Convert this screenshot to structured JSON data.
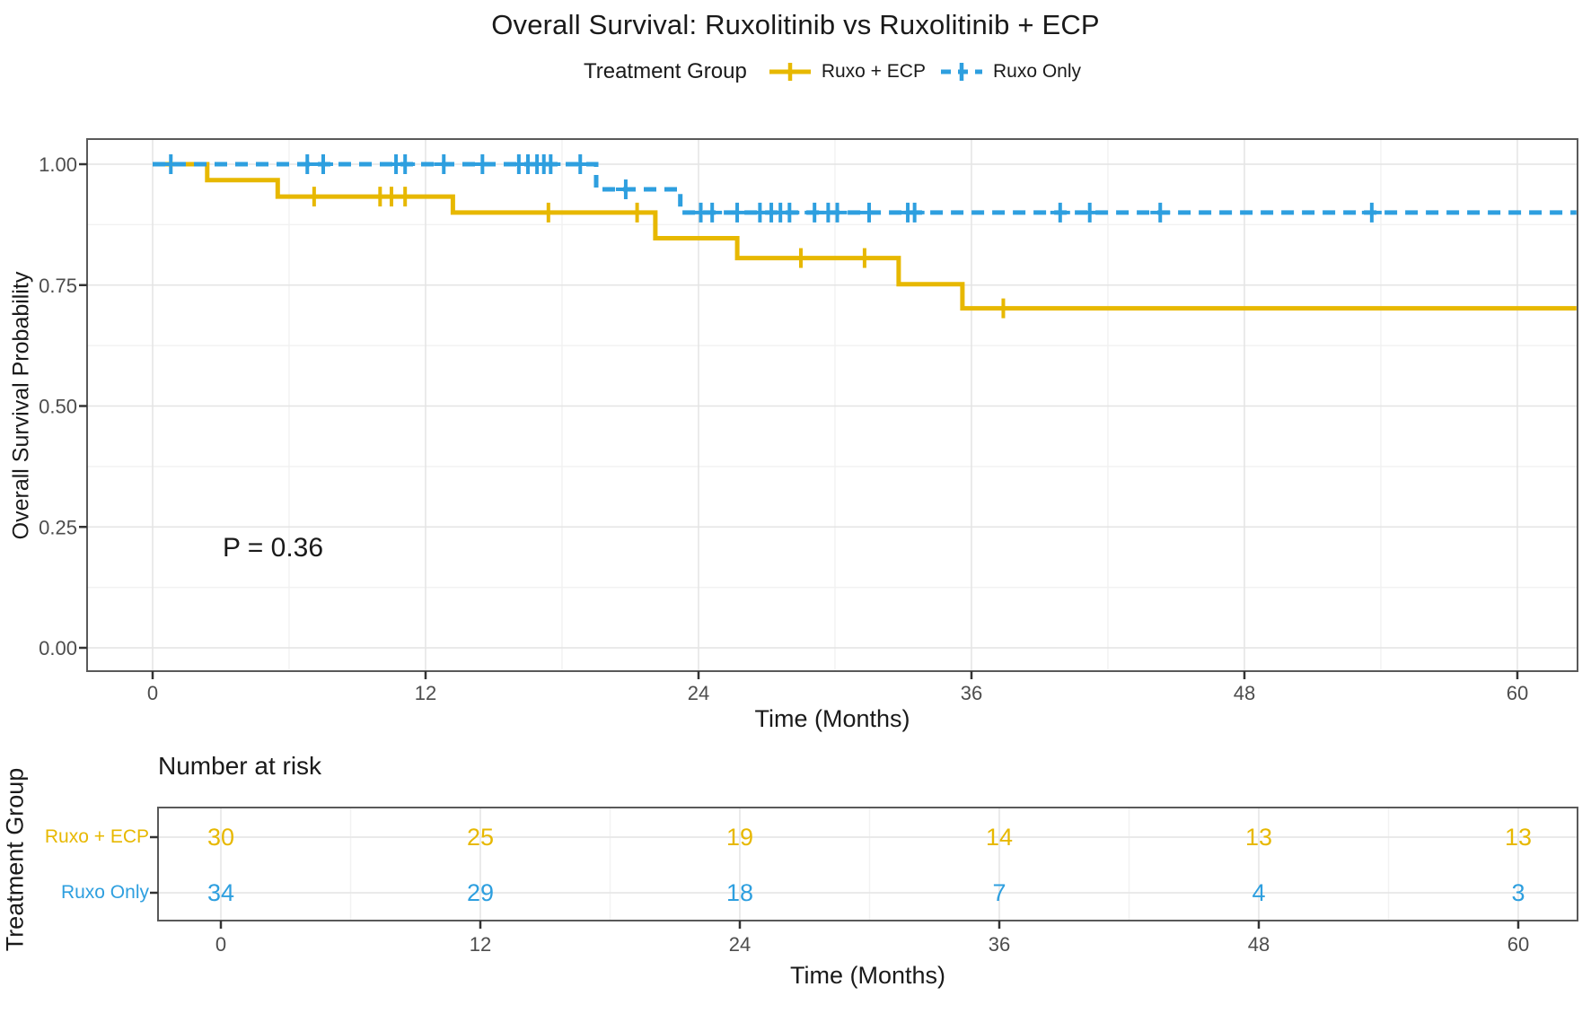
{
  "title": "Overall Survival: Ruxolitinib vs Ruxolitinib + ECP",
  "legend": {
    "title": "Treatment Group",
    "items": [
      {
        "label": "Ruxo + ECP",
        "color": "#E7B800",
        "line_style": "solid"
      },
      {
        "label": "Ruxo Only",
        "color": "#2E9FDF",
        "line_style": "dashed"
      }
    ]
  },
  "annotation": {
    "pvalue": "P = 0.36"
  },
  "colors": {
    "ruxo_ecp": "#E7B800",
    "ruxo_only": "#2E9FDF",
    "tick_label": "#4d4d4d",
    "panel_border": "#595959",
    "grid_major": "#e4e4e4",
    "grid_minor": "#f2f2f2",
    "tick_mark": "#333333"
  },
  "chart_data": {
    "type": "line",
    "subtype": "kaplan-meier-step",
    "title": "Overall Survival: Ruxolitinib vs Ruxolitinib + ECP",
    "xlabel": "Time (Months)",
    "ylabel": "Overall Survival Probability",
    "xlim": [
      -2.9,
      62.7
    ],
    "ylim": [
      -0.05,
      1.05
    ],
    "xticks": [
      0,
      12,
      24,
      36,
      48,
      60
    ],
    "yticks": [
      0.0,
      0.25,
      0.5,
      0.75,
      1.0
    ],
    "minor_xticks": [
      6,
      18,
      30,
      42,
      54
    ],
    "minor_yticks": [
      0.125,
      0.375,
      0.625,
      0.875
    ],
    "grid": true,
    "legend_position": "top",
    "pvalue_label": "P = 0.36",
    "series": [
      {
        "name": "Ruxo + ECP",
        "color": "#E7B800",
        "line_style": "solid",
        "steps": [
          [
            0,
            1.0
          ],
          [
            2.4,
            1.0
          ],
          [
            2.4,
            0.967
          ],
          [
            5.5,
            0.967
          ],
          [
            5.5,
            0.933
          ],
          [
            13.2,
            0.933
          ],
          [
            13.2,
            0.9
          ],
          [
            22.1,
            0.9
          ],
          [
            22.1,
            0.847
          ],
          [
            25.7,
            0.847
          ],
          [
            25.7,
            0.806
          ],
          [
            32.8,
            0.806
          ],
          [
            32.8,
            0.752
          ],
          [
            35.6,
            0.752
          ],
          [
            35.6,
            0.702
          ],
          [
            62.6,
            0.702
          ]
        ],
        "censor_marks": [
          [
            7.1,
            0.933
          ],
          [
            10.0,
            0.933
          ],
          [
            10.5,
            0.933
          ],
          [
            11.1,
            0.933
          ],
          [
            17.4,
            0.9
          ],
          [
            21.3,
            0.9
          ],
          [
            28.5,
            0.806
          ],
          [
            31.3,
            0.806
          ],
          [
            37.4,
            0.702
          ]
        ]
      },
      {
        "name": "Ruxo Only",
        "color": "#2E9FDF",
        "line_style": "dashed",
        "steps": [
          [
            0,
            1.0
          ],
          [
            19.5,
            1.0
          ],
          [
            19.5,
            0.948
          ],
          [
            23.2,
            0.948
          ],
          [
            23.2,
            0.9
          ],
          [
            62.6,
            0.9
          ]
        ],
        "censor_marks": [
          [
            0.8,
            1.0
          ],
          [
            6.8,
            1.0
          ],
          [
            7.5,
            1.0
          ],
          [
            10.7,
            1.0
          ],
          [
            11.1,
            1.0
          ],
          [
            12.8,
            1.0
          ],
          [
            14.5,
            1.0
          ],
          [
            16.1,
            1.0
          ],
          [
            16.5,
            1.0
          ],
          [
            16.9,
            1.0
          ],
          [
            17.2,
            1.0
          ],
          [
            17.5,
            1.0
          ],
          [
            18.8,
            1.0
          ],
          [
            20.8,
            0.948
          ],
          [
            24.1,
            0.9
          ],
          [
            24.6,
            0.9
          ],
          [
            25.7,
            0.9
          ],
          [
            26.7,
            0.9
          ],
          [
            27.2,
            0.9
          ],
          [
            27.6,
            0.9
          ],
          [
            28.0,
            0.9
          ],
          [
            29.1,
            0.9
          ],
          [
            29.7,
            0.9
          ],
          [
            30.1,
            0.9
          ],
          [
            31.5,
            0.9
          ],
          [
            33.2,
            0.9
          ],
          [
            33.5,
            0.9
          ],
          [
            39.9,
            0.9
          ],
          [
            41.2,
            0.9
          ],
          [
            44.3,
            0.9
          ],
          [
            53.6,
            0.9
          ]
        ]
      }
    ],
    "risk_table": {
      "title": "Number at risk",
      "group_axis_label": "Treatment Group",
      "xlabel": "Time (Months)",
      "times": [
        0,
        12,
        24,
        36,
        48,
        60
      ],
      "rows": [
        {
          "label": "Ruxo + ECP",
          "color": "#E7B800",
          "values": [
            30,
            25,
            19,
            14,
            13,
            13
          ]
        },
        {
          "label": "Ruxo Only",
          "color": "#2E9FDF",
          "values": [
            34,
            29,
            18,
            7,
            4,
            3
          ]
        }
      ]
    }
  }
}
